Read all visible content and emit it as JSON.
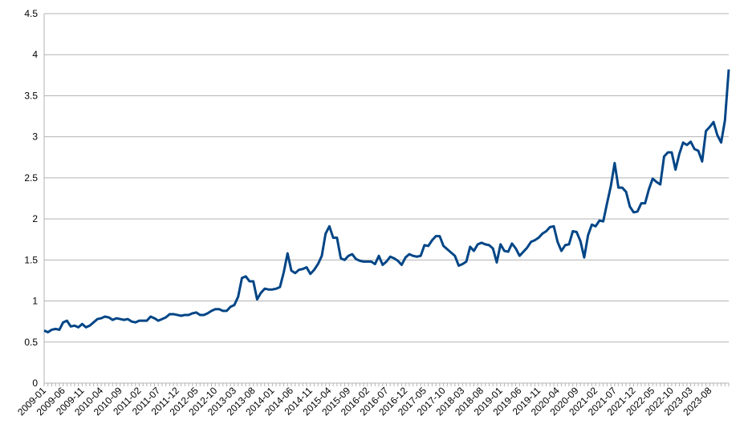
{
  "chart_data": {
    "type": "line",
    "color": "#004586",
    "grid": true,
    "ylim": [
      0,
      4.5
    ],
    "yticks": [
      0,
      0.5,
      1,
      1.5,
      2,
      2.5,
      3,
      3.5,
      4,
      4.5
    ],
    "categories": [
      "2009-01",
      null,
      null,
      null,
      null,
      "2009-06",
      null,
      null,
      null,
      null,
      "2009-11",
      null,
      null,
      null,
      null,
      "2010-04",
      null,
      null,
      null,
      null,
      "2010-09",
      null,
      null,
      null,
      null,
      "2011-02",
      null,
      null,
      null,
      null,
      "2011-07",
      null,
      null,
      null,
      null,
      "2011-12",
      null,
      null,
      null,
      null,
      "2012-05",
      null,
      null,
      null,
      null,
      "2012-10",
      null,
      null,
      null,
      null,
      "2013-03",
      null,
      null,
      null,
      null,
      "2013-08",
      null,
      null,
      null,
      null,
      "2014-01",
      null,
      null,
      null,
      null,
      "2014-06",
      null,
      null,
      null,
      null,
      "2014-11",
      null,
      null,
      null,
      null,
      "2015-04",
      null,
      null,
      null,
      null,
      "2015-09",
      null,
      null,
      null,
      null,
      "2016-02",
      null,
      null,
      null,
      null,
      "2016-07",
      null,
      null,
      null,
      null,
      "2016-12",
      null,
      null,
      null,
      null,
      "2017-05",
      null,
      null,
      null,
      null,
      "2017-10",
      null,
      null,
      null,
      null,
      "2018-03",
      null,
      null,
      null,
      null,
      "2018-08",
      null,
      null,
      null,
      null,
      "2019-01",
      null,
      null,
      null,
      null,
      "2019-06",
      null,
      null,
      null,
      null,
      "2019-11",
      null,
      null,
      null,
      null,
      "2020-04",
      null,
      null,
      null,
      null,
      "2020-09",
      null,
      null,
      null,
      null,
      "2021-02",
      null,
      null,
      null,
      null,
      "2021-07",
      null,
      null,
      null,
      null,
      "2021-12",
      null,
      null,
      null,
      null,
      "2022-05",
      null,
      null,
      null,
      null,
      "2022-10",
      null,
      null,
      null,
      null,
      "2023-03",
      null,
      null,
      null,
      null,
      "2023-08",
      null,
      null,
      null,
      null,
      null
    ],
    "values": [
      0.64,
      0.62,
      0.65,
      0.66,
      0.65,
      0.74,
      0.76,
      0.69,
      0.7,
      0.68,
      0.72,
      0.68,
      0.7,
      0.74,
      0.78,
      0.79,
      0.81,
      0.8,
      0.77,
      0.79,
      0.78,
      0.77,
      0.78,
      0.75,
      0.74,
      0.76,
      0.76,
      0.76,
      0.81,
      0.79,
      0.76,
      0.78,
      0.8,
      0.84,
      0.84,
      0.83,
      0.82,
      0.83,
      0.83,
      0.85,
      0.86,
      0.83,
      0.83,
      0.85,
      0.88,
      0.9,
      0.9,
      0.88,
      0.88,
      0.93,
      0.95,
      1.05,
      1.28,
      1.3,
      1.24,
      1.24,
      1.02,
      1.1,
      1.15,
      1.14,
      1.14,
      1.15,
      1.17,
      1.35,
      1.58,
      1.37,
      1.34,
      1.38,
      1.39,
      1.41,
      1.33,
      1.38,
      1.45,
      1.55,
      1.82,
      1.91,
      1.77,
      1.77,
      1.52,
      1.5,
      1.55,
      1.57,
      1.51,
      1.49,
      1.48,
      1.48,
      1.48,
      1.45,
      1.55,
      1.44,
      1.48,
      1.54,
      1.52,
      1.49,
      1.44,
      1.53,
      1.57,
      1.55,
      1.54,
      1.55,
      1.68,
      1.67,
      1.74,
      1.79,
      1.79,
      1.67,
      1.63,
      1.59,
      1.55,
      1.43,
      1.45,
      1.48,
      1.66,
      1.61,
      1.69,
      1.71,
      1.69,
      1.68,
      1.64,
      1.47,
      1.69,
      1.61,
      1.6,
      1.7,
      1.64,
      1.55,
      1.6,
      1.65,
      1.72,
      1.74,
      1.77,
      1.82,
      1.85,
      1.9,
      1.91,
      1.72,
      1.61,
      1.68,
      1.69,
      1.85,
      1.84,
      1.73,
      1.53,
      1.8,
      1.93,
      1.91,
      1.98,
      1.97,
      2.19,
      2.4,
      2.68,
      2.38,
      2.38,
      2.33,
      2.15,
      2.08,
      2.09,
      2.19,
      2.19,
      2.36,
      2.49,
      2.45,
      2.42,
      2.76,
      2.81,
      2.81,
      2.6,
      2.79,
      2.93,
      2.9,
      2.94,
      2.85,
      2.83,
      2.7,
      3.07,
      3.12,
      3.18,
      3.02,
      2.93,
      3.2,
      3.82
    ]
  }
}
